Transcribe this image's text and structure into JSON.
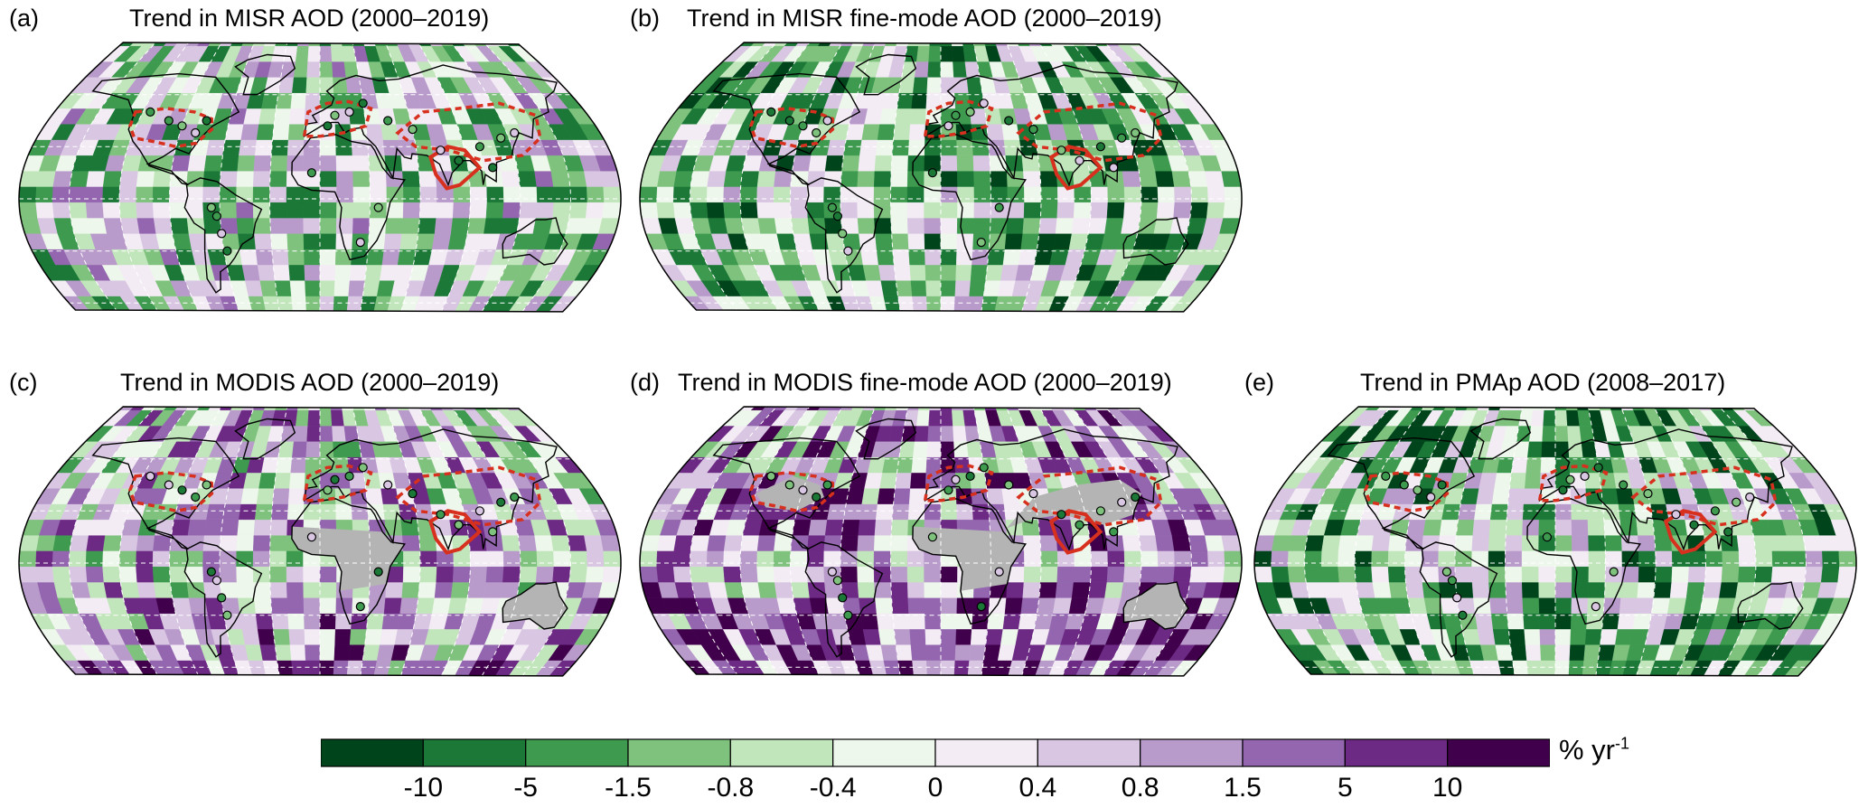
{
  "panels": [
    {
      "tag": "(a)",
      "title": "Trend in MISR AOD (2000–2019)",
      "seed": 11,
      "bias": -0.25,
      "gray": false
    },
    {
      "tag": "(b)",
      "title": "Trend in MISR fine-mode AOD (2000–2019)",
      "seed": 23,
      "bias": -0.55,
      "gray": false
    },
    {
      "tag": "(c)",
      "title": "Trend in MODIS AOD (2000–2019)",
      "seed": 37,
      "bias": 0.25,
      "gray": true
    },
    {
      "tag": "(d)",
      "title": "Trend in MODIS fine-mode AOD (2000–2019)",
      "seed": 41,
      "bias": 0.55,
      "gray": true
    },
    {
      "tag": "(e)",
      "title": "Trend in PMAp AOD (2008–2017)",
      "seed": 59,
      "bias": -0.5,
      "gray": false
    }
  ],
  "colorbar": {
    "colors": [
      "#00441b",
      "#1b7837",
      "#3d9a4f",
      "#7fc27d",
      "#c2e6bb",
      "#eef7eb",
      "#f3ecf5",
      "#d9c6e2",
      "#b99bcb",
      "#9366af",
      "#6c2a84",
      "#40004b"
    ],
    "tick_labels": [
      "-10",
      "-5",
      "-1.5",
      "-0.8",
      "-0.4",
      "0",
      "0.4",
      "0.8",
      "1.5",
      "5",
      "10"
    ],
    "unit": "% yr",
    "unit_exp": "-1"
  },
  "map_colors": {
    "land_gray": "#b4b4b4",
    "region_outline": "#d7301f",
    "coast": "#000000"
  }
}
